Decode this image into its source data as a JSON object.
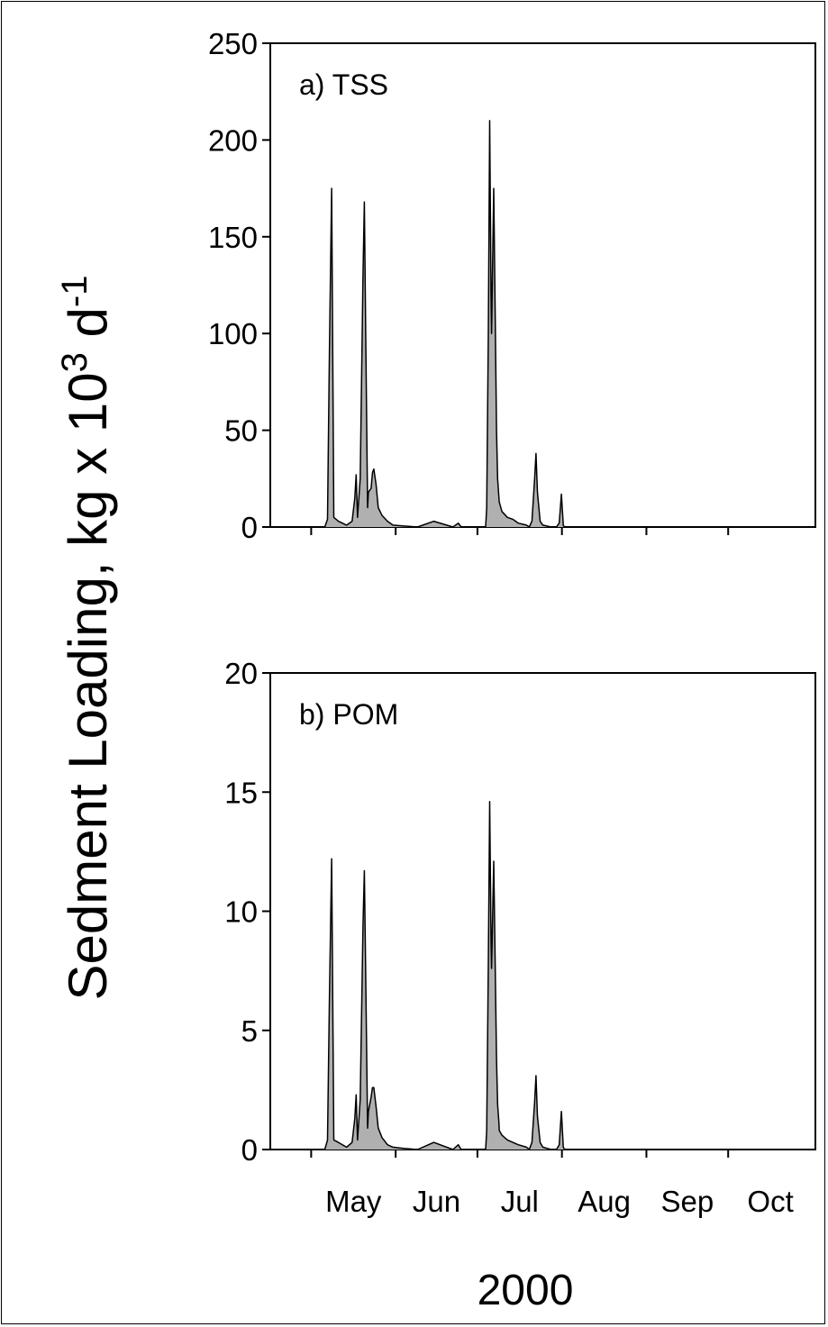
{
  "figure": {
    "ylabel_main": "Sedment Loading, kg x 10",
    "ylabel_exp1": "3",
    "ylabel_mid": " d",
    "ylabel_exp2": "-1",
    "ylabel_full": "Sedment Loading, kg x 10³ d⁻¹",
    "xtitle": "2000",
    "month_labels": [
      "May",
      "Jun",
      "Jul",
      "Aug",
      "Sep",
      "Oct"
    ]
  },
  "colors": {
    "fill": "#b0b0b0",
    "line": "#000000"
  },
  "chart_data": [
    {
      "type": "area",
      "title": "a) TSS",
      "xlabel": "2000",
      "ylabel": "Sedment Loading, kg x 10³ d⁻¹",
      "ylim": [
        0,
        250
      ],
      "yticks": [
        "0",
        "50",
        "100",
        "150",
        "200",
        "250"
      ],
      "x_unit": "day of year",
      "xlim": [
        106,
        306
      ],
      "month_starts": [
        121,
        152,
        182,
        213,
        244,
        274
      ],
      "grid": false,
      "x": [
        106,
        120,
        126,
        127,
        127.7,
        128.5,
        129.3,
        131,
        134,
        136,
        137,
        137.5,
        138,
        139,
        140,
        140.5,
        141,
        141.7,
        142,
        143,
        143.5,
        144,
        144.8,
        145.6,
        147,
        149,
        151,
        155,
        160,
        166,
        173,
        175,
        176,
        178,
        180,
        183,
        185,
        185.4,
        186,
        186.5,
        187,
        187.2,
        188,
        189,
        189.4,
        189.9,
        190,
        191,
        193,
        195,
        197,
        200,
        201,
        202,
        203,
        203.5,
        204,
        205,
        206,
        209,
        211,
        212,
        212.8,
        213.5,
        214,
        230,
        260,
        306
      ],
      "y": [
        0,
        0,
        0,
        4,
        90,
        175,
        5,
        3,
        1,
        3,
        15,
        27,
        5,
        25,
        130,
        168,
        100,
        10,
        18,
        20,
        28,
        30,
        22,
        10,
        6,
        3,
        1,
        0.5,
        0,
        3,
        0,
        2,
        0,
        0,
        0,
        0,
        0,
        10,
        100,
        210,
        120,
        100,
        175,
        50,
        25,
        15,
        13,
        8,
        5,
        4,
        2,
        1,
        0,
        3,
        25,
        38,
        18,
        3,
        1,
        0,
        0,
        2,
        17,
        1,
        0,
        0,
        0,
        0
      ]
    },
    {
      "type": "area",
      "title": "b) POM",
      "xlabel": "2000",
      "ylabel": "Sedment Loading, kg x 10³ d⁻¹",
      "ylim": [
        0,
        20
      ],
      "yticks": [
        "0",
        "5",
        "10",
        "15",
        "20"
      ],
      "x_unit": "day of year",
      "xlim": [
        106,
        306
      ],
      "month_starts": [
        121,
        152,
        182,
        213,
        244,
        274
      ],
      "grid": false,
      "x": [
        106,
        120,
        126,
        127,
        127.7,
        128.5,
        129.3,
        131,
        134,
        136,
        137,
        137.5,
        138,
        139,
        140,
        140.5,
        141,
        141.7,
        142,
        143,
        143.5,
        144,
        144.8,
        145.6,
        147,
        149,
        151,
        155,
        160,
        166,
        173,
        175,
        176,
        178,
        180,
        183,
        185,
        185.4,
        186,
        186.5,
        187,
        187.2,
        188,
        189,
        189.4,
        189.9,
        190,
        191,
        193,
        195,
        197,
        200,
        201,
        202,
        203,
        203.5,
        204,
        205,
        206,
        209,
        211,
        212,
        212.8,
        213.5,
        214,
        230,
        260,
        306
      ],
      "y": [
        0,
        0,
        0,
        0.4,
        6.3,
        12.2,
        0.4,
        0.3,
        0.1,
        0.3,
        1.3,
        2.3,
        0.4,
        2.1,
        9.4,
        11.7,
        7.3,
        0.9,
        1.6,
        2.2,
        2.6,
        2.6,
        1.8,
        0.9,
        0.5,
        0.2,
        0.1,
        0.05,
        0,
        0.3,
        0,
        0.2,
        0,
        0,
        0,
        0,
        0,
        0.8,
        7.8,
        14.6,
        8.8,
        7.6,
        12.1,
        3.8,
        1.9,
        1.1,
        0.8,
        0.6,
        0.4,
        0.3,
        0.2,
        0.1,
        0,
        0.3,
        2.0,
        3.1,
        1.4,
        0.3,
        0.1,
        0,
        0,
        0.2,
        1.6,
        0.1,
        0,
        0,
        0,
        0
      ]
    }
  ]
}
